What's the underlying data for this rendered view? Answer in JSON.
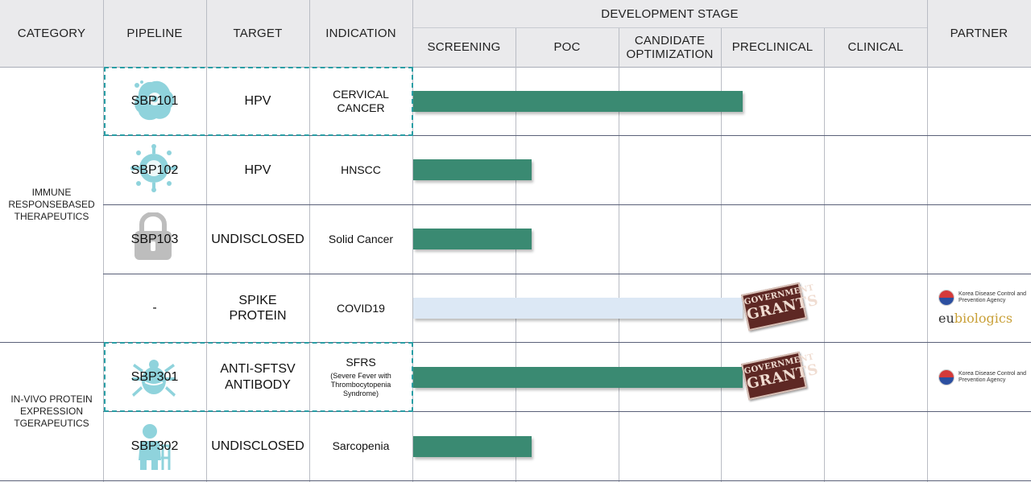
{
  "header": {
    "category": "CATEGORY",
    "pipeline": "PIPELINE",
    "target": "TARGET",
    "indication": "INDICATION",
    "development_stage": "DEVELOPMENT STAGE",
    "partner": "PARTNER",
    "stages": [
      "SCREENING",
      "POC",
      "CANDIDATE OPTIMIZATION",
      "PRECLINICAL",
      "CLINICAL"
    ]
  },
  "categories": [
    {
      "label": "IMMUNE RESPONSEBASED THERAPEUTICS"
    },
    {
      "label": "IN-VIVO PROTEIN EXPRESSION TGERAPEUTICS"
    }
  ],
  "rows": [
    {
      "pipeline": "SBP101",
      "target": "HPV",
      "indication": "CERVICAL CANCER",
      "indication_note": "",
      "icon": "virus-cell-icon"
    },
    {
      "pipeline": "SBP102",
      "target": "HPV",
      "indication": "HNSCC",
      "indication_note": "",
      "icon": "virus-icon"
    },
    {
      "pipeline": "SBP103",
      "target": "UNDISCLOSED",
      "indication": "Solid Cancer",
      "indication_note": "",
      "icon": "lock-icon"
    },
    {
      "pipeline": "-",
      "target": "SPIKE PROTEIN",
      "indication": "COVID19",
      "indication_note": "",
      "icon": ""
    },
    {
      "pipeline": "SBP301",
      "target": "ANTI-SFTSV ANTIBODY",
      "indication": "SFRS",
      "indication_note": "(Severe Fever with Thrombocytopenia Syndrome)",
      "icon": "tick-icon"
    },
    {
      "pipeline": "SBP302",
      "target": "UNDISCLOSED",
      "indication": "Sarcopenia",
      "indication_note": "",
      "icon": "elderly-person-icon"
    }
  ],
  "stamps": {
    "line1": "GOVERNMENT",
    "line2": "GRANTS"
  },
  "partners": {
    "kdca_line1": "Korea Disease Control and",
    "kdca_line2": "Prevention Agency",
    "eubio_eu": "eu",
    "eubio_rest": "biologics"
  },
  "colors": {
    "bar_active": "#3a8a72",
    "bar_planned": "#dce8f5",
    "highlight_dash": "#2a9ea5",
    "header_bg": "#eaeaec",
    "icon_teal": "#8fd3dc",
    "icon_grey": "#bdbdbd"
  },
  "chart_data": {
    "type": "bar",
    "orientation": "horizontal",
    "categories": [
      "SBP101",
      "SBP102",
      "SBP103",
      "-",
      "SBP301",
      "SBP302"
    ],
    "stage_order": [
      "SCREENING",
      "POC",
      "CANDIDATE OPTIMIZATION",
      "PRECLINICAL",
      "CLINICAL"
    ],
    "values": [
      3.2,
      1.15,
      1.15,
      3.2,
      3.2,
      1.15
    ],
    "value_unit": "stages completed",
    "xlim": [
      0,
      5
    ],
    "status": [
      "active",
      "active",
      "active",
      "planned",
      "active",
      "active"
    ],
    "grants": [
      false,
      false,
      false,
      true,
      true,
      false
    ],
    "highlighted": [
      "SBP101",
      "SBP301"
    ],
    "title": "DEVELOPMENT STAGE",
    "xlabel": "",
    "ylabel": "",
    "grid": true,
    "legend": "none"
  }
}
